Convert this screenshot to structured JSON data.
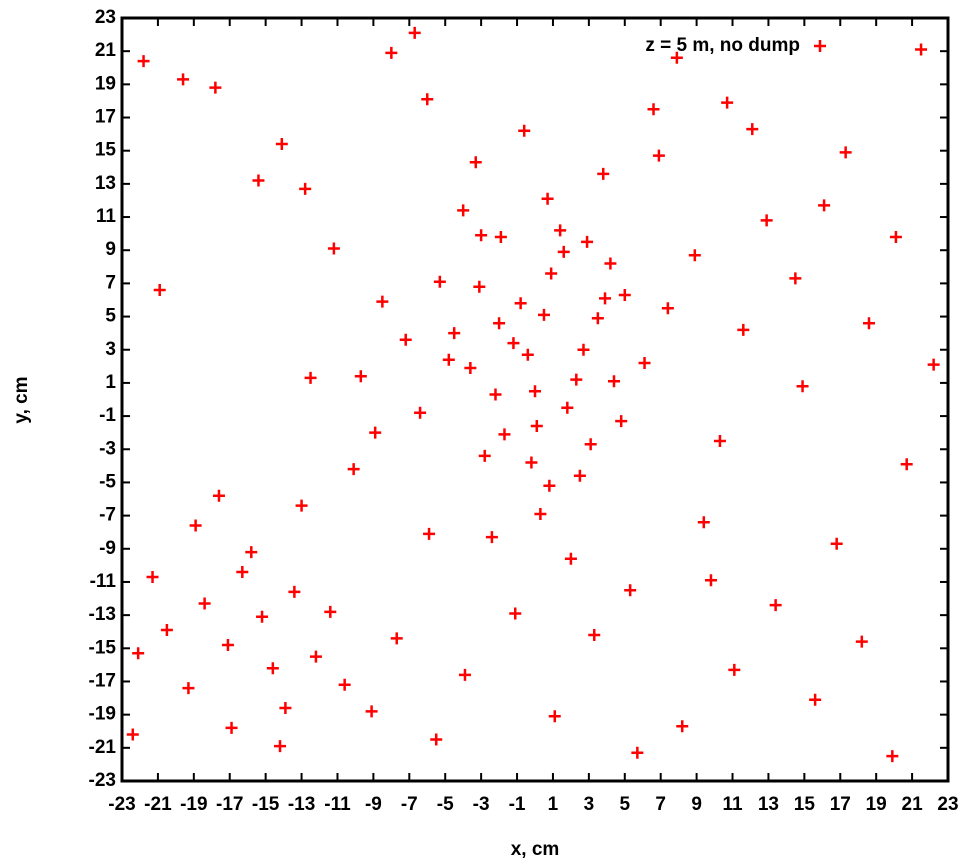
{
  "chart_data": {
    "type": "scatter",
    "x_label": "x, cm",
    "y_label": "y, cm",
    "xlim": [
      -23,
      23
    ],
    "ylim": [
      -23,
      23
    ],
    "xticks": [
      -23,
      -21,
      -19,
      -17,
      -15,
      -13,
      -11,
      -9,
      -7,
      -5,
      -3,
      -1,
      1,
      3,
      5,
      7,
      9,
      11,
      13,
      15,
      17,
      19,
      21,
      23
    ],
    "yticks": [
      -23,
      -21,
      -19,
      -17,
      -15,
      -13,
      -11,
      -9,
      -7,
      -5,
      -3,
      -1,
      1,
      3,
      5,
      7,
      9,
      11,
      13,
      15,
      17,
      19,
      21,
      23
    ],
    "legend_position": "upper right",
    "series": [
      {
        "name": "z = 5 m, no dump",
        "color": "#ff0000",
        "x": [
          -1.2,
          0.5,
          2.3,
          -3.1,
          1.8,
          -0.4,
          3.5,
          -2.2,
          0.9,
          -1.7,
          4.2,
          -4.5,
          0.1,
          2.9,
          -2.8,
          1.4,
          -0.8,
          3.1,
          -3.6,
          5.0,
          -5.3,
          6.1,
          -6.4,
          0.7,
          -1.9,
          2.5,
          -7.2,
          7.4,
          -4.0,
          4.8,
          -8.5,
          8.9,
          -9.7,
          10.3,
          -3.3,
          3.8,
          -11.2,
          11.6,
          0.3,
          -0.6,
          -12.8,
          12.9,
          -14.1,
          14.5,
          -6.0,
          6.6,
          -2.4,
          2.0,
          -10.1,
          9.4,
          -15.2,
          -13.4,
          -17.1,
          -16.3,
          -14.6,
          -18.4,
          -12.2,
          -19.3,
          -15.8,
          -13.9,
          -20.5,
          -11.4,
          -16.9,
          -21.3,
          -14.2,
          -18.9,
          -10.6,
          -17.6,
          -13.0,
          -22.1,
          -21.8,
          21.5,
          -19.6,
          19.9,
          -22.4,
          22.2,
          -17.8,
          17.3,
          15.6,
          -15.4,
          13.4,
          16.8,
          18.6,
          20.7,
          11.1,
          14.9,
          8.2,
          10.7,
          5.7,
          7.9,
          -7.7,
          -9.1,
          -5.5,
          -3.9,
          -1.1,
          1.1,
          3.3,
          5.3,
          -8.0,
          -6.7,
          0.0,
          2.7,
          -2.0,
          4.4,
          -4.8,
          1.6,
          -0.2,
          3.9,
          -3.0,
          0.8,
          12.1,
          16.1,
          20.1,
          -20.9,
          -8.9,
          9.8,
          18.2,
          -12.5,
          6.9,
          -5.9
        ],
        "values": [
          3.4,
          5.1,
          1.2,
          6.8,
          -0.5,
          2.7,
          4.9,
          0.3,
          7.6,
          -2.1,
          8.2,
          4.0,
          -1.6,
          9.5,
          -3.4,
          10.2,
          5.8,
          -2.7,
          1.9,
          6.3,
          7.1,
          2.2,
          -0.8,
          12.1,
          9.8,
          -4.6,
          3.6,
          5.5,
          11.4,
          -1.3,
          5.9,
          8.7,
          1.4,
          -2.5,
          14.3,
          13.6,
          9.1,
          4.2,
          -6.9,
          16.2,
          12.7,
          10.8,
          15.4,
          7.3,
          18.1,
          17.5,
          -8.3,
          -9.6,
          -4.2,
          -7.4,
          -13.1,
          -11.6,
          -14.8,
          -10.4,
          -16.2,
          -12.3,
          -15.5,
          -17.4,
          -9.2,
          -18.6,
          -13.9,
          -12.8,
          -19.8,
          -10.7,
          -20.9,
          -7.6,
          -17.2,
          -5.8,
          -6.4,
          -15.3,
          20.4,
          21.1,
          19.3,
          -21.5,
          -20.2,
          2.1,
          18.8,
          14.9,
          -18.1,
          13.2,
          -12.4,
          -8.7,
          4.6,
          -3.9,
          -16.3,
          0.8,
          -19.7,
          17.9,
          -21.3,
          20.6,
          -14.4,
          -18.8,
          -20.5,
          -16.6,
          -12.9,
          -19.1,
          -14.2,
          -11.5,
          20.9,
          22.1,
          0.5,
          3.0,
          4.6,
          1.1,
          2.4,
          8.9,
          -3.8,
          6.1,
          9.9,
          -5.2,
          16.3,
          11.7,
          9.8,
          6.6,
          -2.0,
          -10.9,
          -14.6,
          1.3,
          14.7,
          -8.1
        ]
      }
    ]
  }
}
